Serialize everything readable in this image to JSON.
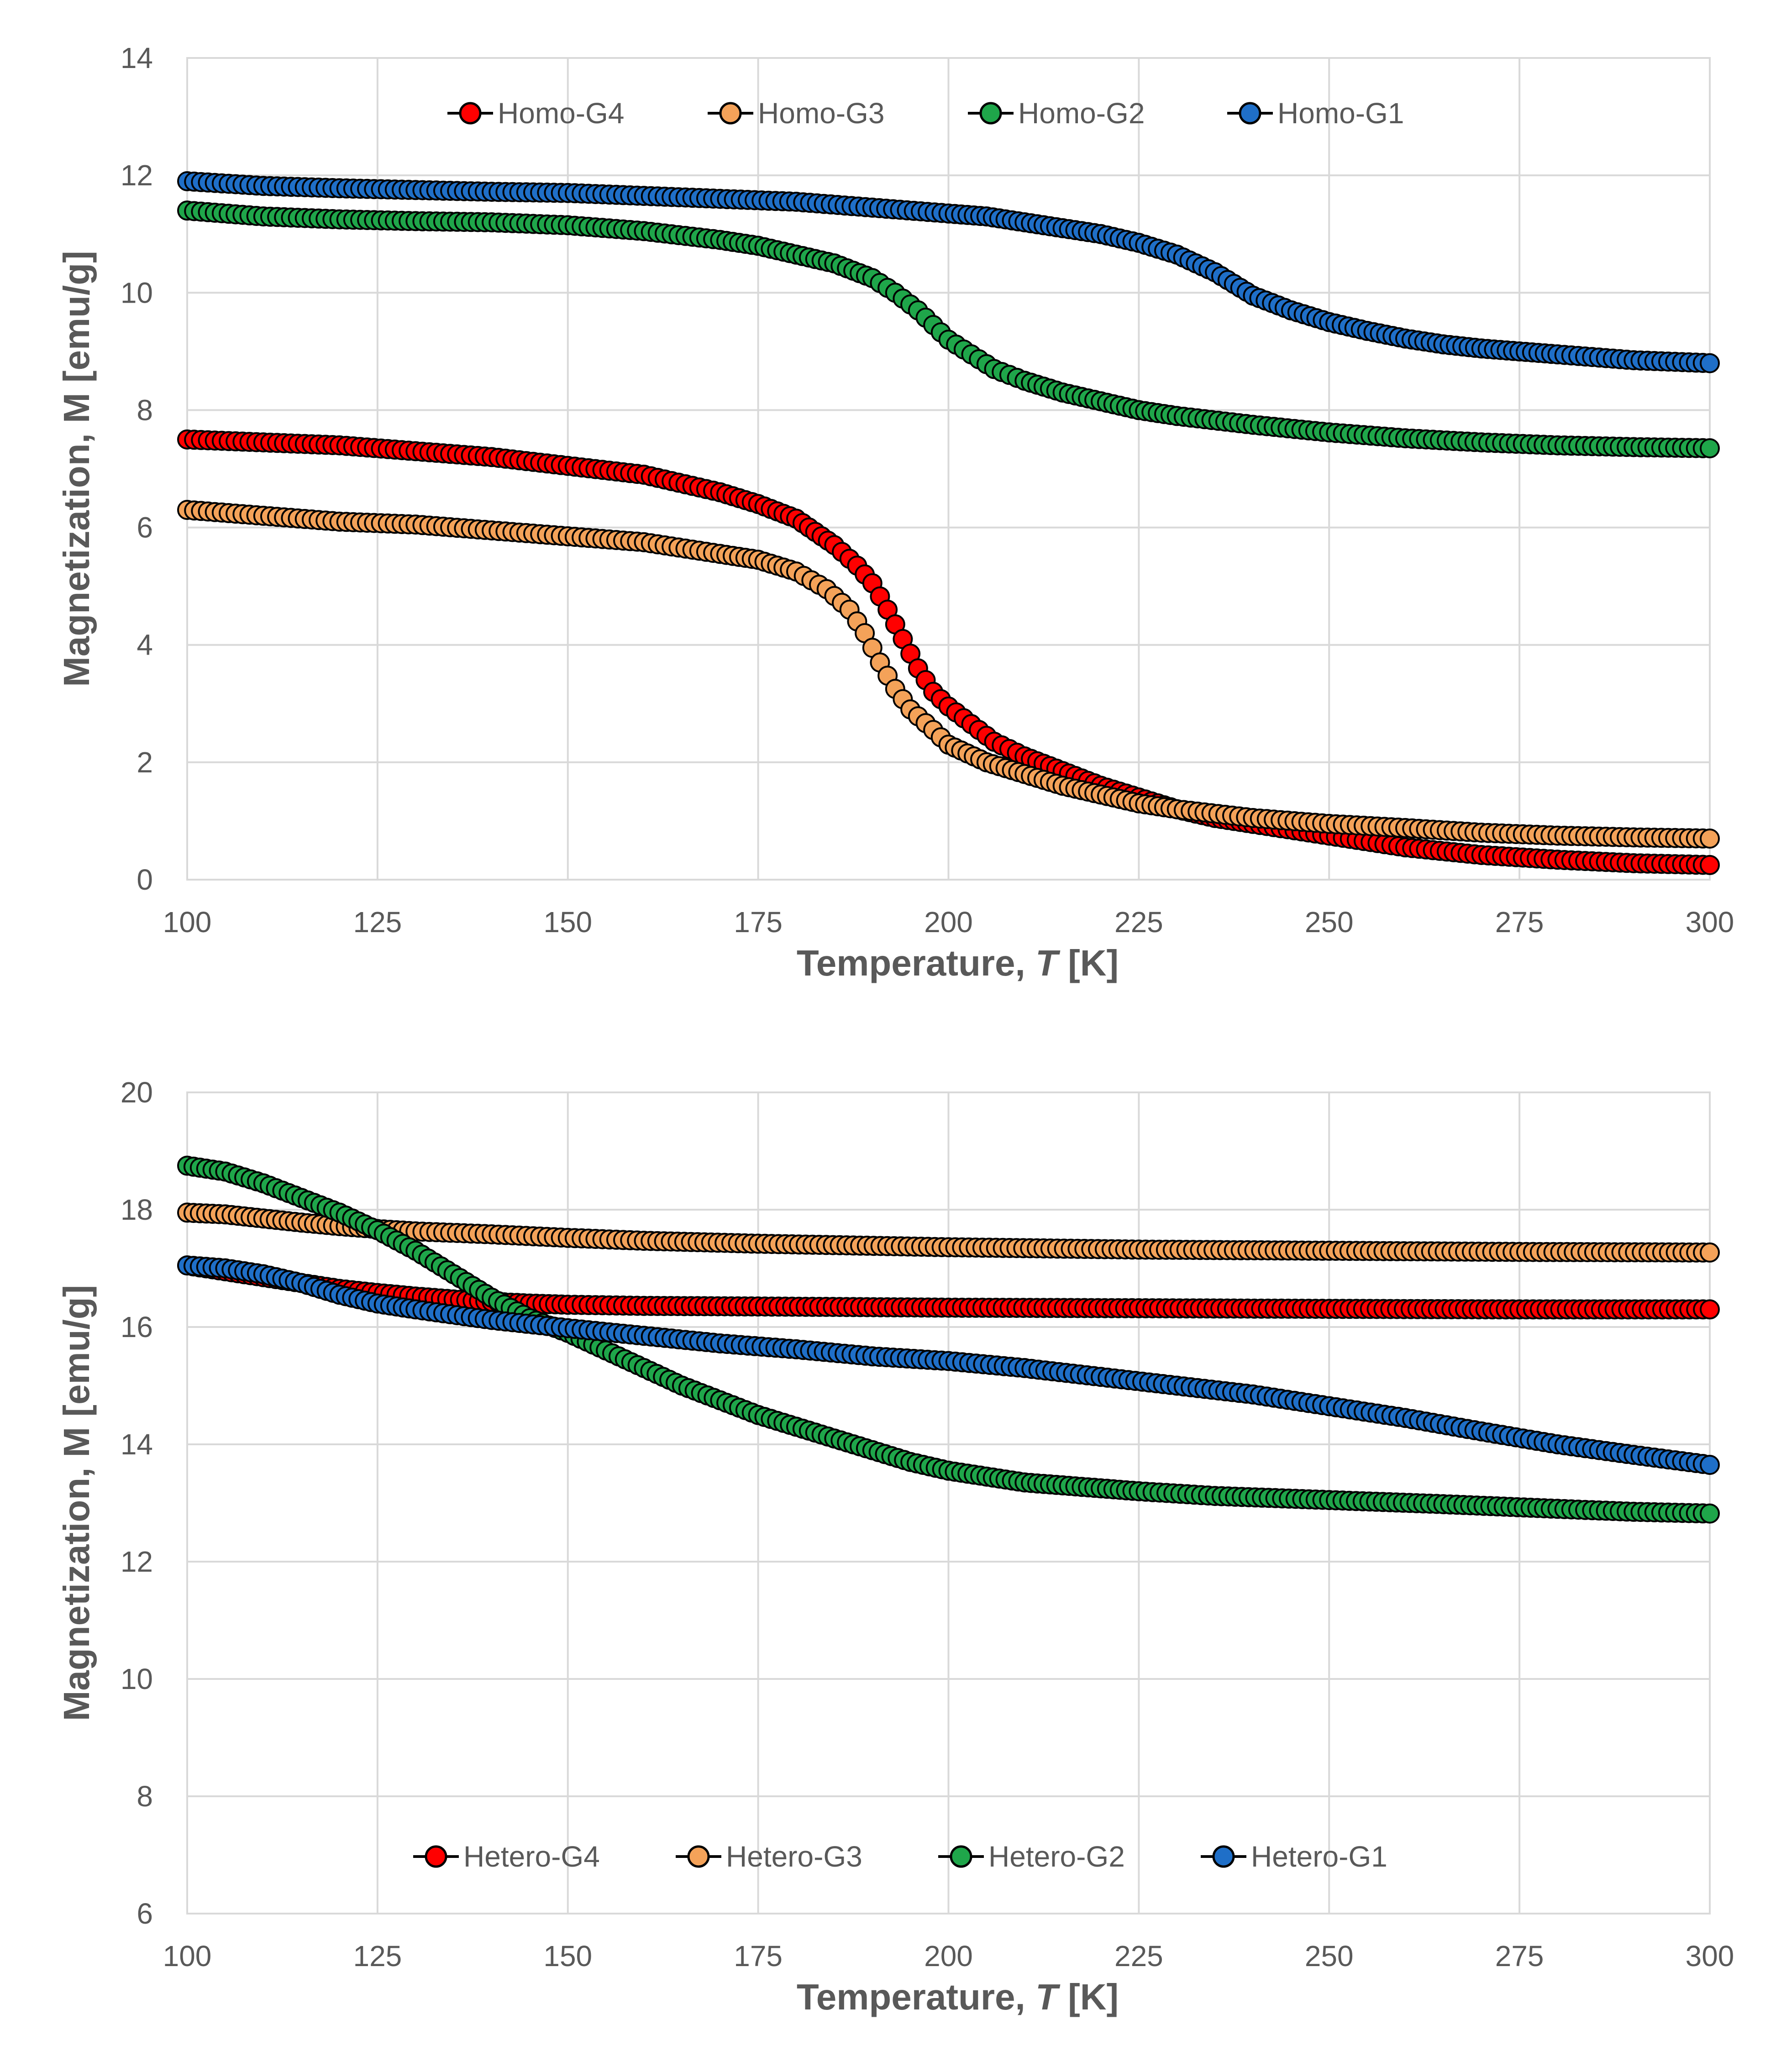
{
  "chart_data": [
    {
      "type": "scatter",
      "xlabel_main": "Temperature, ",
      "xlabel_var": "T",
      "xlabel_unit": " [K]",
      "ylabel": "Magnetization, M [emu/g]",
      "xlim": [
        100,
        300
      ],
      "ylim": [
        0,
        14
      ],
      "xticks": [
        "100",
        "125",
        "150",
        "175",
        "200",
        "225",
        "250",
        "275",
        "300"
      ],
      "yticks": [
        "0",
        "2",
        "4",
        "6",
        "8",
        "10",
        "12",
        "14"
      ],
      "legend_position": "top",
      "grid": true,
      "series": [
        {
          "name": "Homo-G4",
          "color": "#ff0000",
          "points": [
            [
              100,
              7.5
            ],
            [
              110,
              7.45
            ],
            [
              120,
              7.4
            ],
            [
              130,
              7.3
            ],
            [
              140,
              7.2
            ],
            [
              150,
              7.05
            ],
            [
              160,
              6.9
            ],
            [
              170,
              6.6
            ],
            [
              175,
              6.4
            ],
            [
              180,
              6.15
            ],
            [
              185,
              5.7
            ],
            [
              188,
              5.35
            ],
            [
              190,
              5.05
            ],
            [
              192,
              4.6
            ],
            [
              194,
              4.1
            ],
            [
              196,
              3.6
            ],
            [
              198,
              3.2
            ],
            [
              200,
              2.95
            ],
            [
              203,
              2.65
            ],
            [
              206,
              2.35
            ],
            [
              210,
              2.1
            ],
            [
              215,
              1.85
            ],
            [
              220,
              1.6
            ],
            [
              225,
              1.4
            ],
            [
              230,
              1.2
            ],
            [
              235,
              1.05
            ],
            [
              240,
              0.95
            ],
            [
              250,
              0.75
            ],
            [
              260,
              0.55
            ],
            [
              270,
              0.42
            ],
            [
              280,
              0.34
            ],
            [
              290,
              0.28
            ],
            [
              300,
              0.25
            ]
          ]
        },
        {
          "name": "Homo-G3",
          "color": "#f4a259",
          "points": [
            [
              100,
              6.3
            ],
            [
              110,
              6.2
            ],
            [
              120,
              6.1
            ],
            [
              130,
              6.05
            ],
            [
              140,
              5.95
            ],
            [
              150,
              5.85
            ],
            [
              160,
              5.75
            ],
            [
              170,
              5.55
            ],
            [
              175,
              5.45
            ],
            [
              180,
              5.25
            ],
            [
              184,
              4.95
            ],
            [
              187,
              4.6
            ],
            [
              189,
              4.2
            ],
            [
              191,
              3.7
            ],
            [
              193,
              3.25
            ],
            [
              195,
              2.9
            ],
            [
              198,
              2.55
            ],
            [
              200,
              2.3
            ],
            [
              205,
              2.0
            ],
            [
              210,
              1.8
            ],
            [
              215,
              1.6
            ],
            [
              220,
              1.45
            ],
            [
              225,
              1.3
            ],
            [
              230,
              1.2
            ],
            [
              240,
              1.05
            ],
            [
              250,
              0.95
            ],
            [
              260,
              0.88
            ],
            [
              270,
              0.8
            ],
            [
              280,
              0.75
            ],
            [
              290,
              0.72
            ],
            [
              300,
              0.7
            ]
          ]
        },
        {
          "name": "Homo-G2",
          "color": "#1fa64a",
          "points": [
            [
              100,
              11.4
            ],
            [
              110,
              11.3
            ],
            [
              120,
              11.25
            ],
            [
              130,
              11.22
            ],
            [
              140,
              11.2
            ],
            [
              150,
              11.15
            ],
            [
              160,
              11.05
            ],
            [
              170,
              10.9
            ],
            [
              175,
              10.8
            ],
            [
              180,
              10.65
            ],
            [
              185,
              10.5
            ],
            [
              190,
              10.25
            ],
            [
              193,
              10.0
            ],
            [
              196,
              9.7
            ],
            [
              198,
              9.45
            ],
            [
              200,
              9.2
            ],
            [
              203,
              8.95
            ],
            [
              206,
              8.7
            ],
            [
              210,
              8.5
            ],
            [
              215,
              8.3
            ],
            [
              220,
              8.15
            ],
            [
              225,
              8.0
            ],
            [
              230,
              7.9
            ],
            [
              240,
              7.75
            ],
            [
              250,
              7.62
            ],
            [
              260,
              7.52
            ],
            [
              270,
              7.45
            ],
            [
              280,
              7.4
            ],
            [
              290,
              7.37
            ],
            [
              300,
              7.35
            ]
          ]
        },
        {
          "name": "Homo-G1",
          "color": "#1f6fc8",
          "points": [
            [
              100,
              11.9
            ],
            [
              110,
              11.82
            ],
            [
              120,
              11.78
            ],
            [
              130,
              11.75
            ],
            [
              140,
              11.72
            ],
            [
              150,
              11.7
            ],
            [
              160,
              11.65
            ],
            [
              170,
              11.6
            ],
            [
              180,
              11.55
            ],
            [
              190,
              11.45
            ],
            [
              200,
              11.35
            ],
            [
              205,
              11.3
            ],
            [
              210,
              11.2
            ],
            [
              215,
              11.1
            ],
            [
              220,
              11.0
            ],
            [
              225,
              10.85
            ],
            [
              230,
              10.65
            ],
            [
              235,
              10.35
            ],
            [
              240,
              9.95
            ],
            [
              245,
              9.7
            ],
            [
              250,
              9.5
            ],
            [
              255,
              9.35
            ],
            [
              260,
              9.22
            ],
            [
              265,
              9.12
            ],
            [
              270,
              9.05
            ],
            [
              275,
              9.0
            ],
            [
              280,
              8.95
            ],
            [
              290,
              8.85
            ],
            [
              300,
              8.8
            ]
          ]
        }
      ]
    },
    {
      "type": "scatter",
      "xlabel_main": "Temperature, ",
      "xlabel_var": "T",
      "xlabel_unit": " [K]",
      "ylabel": "Magnetization, M [emu/g]",
      "xlim": [
        100,
        300
      ],
      "ylim": [
        6,
        20
      ],
      "xticks": [
        "100",
        "125",
        "150",
        "175",
        "200",
        "225",
        "250",
        "275",
        "300"
      ],
      "yticks": [
        "6",
        "8",
        "10",
        "12",
        "14",
        "16",
        "18",
        "20"
      ],
      "legend_position": "bottom",
      "grid": true,
      "series": [
        {
          "name": "Hetero-G4",
          "color": "#ff0000",
          "points": [
            [
              100,
              17.05
            ],
            [
              105,
              16.95
            ],
            [
              110,
              16.85
            ],
            [
              115,
              16.75
            ],
            [
              120,
              16.65
            ],
            [
              125,
              16.58
            ],
            [
              130,
              16.52
            ],
            [
              135,
              16.47
            ],
            [
              140,
              16.43
            ],
            [
              145,
              16.4
            ],
            [
              150,
              16.38
            ],
            [
              160,
              16.36
            ],
            [
              175,
              16.35
            ],
            [
              200,
              16.33
            ],
            [
              225,
              16.32
            ],
            [
              250,
              16.31
            ],
            [
              275,
              16.3
            ],
            [
              300,
              16.3
            ]
          ]
        },
        {
          "name": "Hetero-G3",
          "color": "#f4a259",
          "points": [
            [
              100,
              17.95
            ],
            [
              105,
              17.92
            ],
            [
              110,
              17.85
            ],
            [
              115,
              17.78
            ],
            [
              120,
              17.72
            ],
            [
              125,
              17.67
            ],
            [
              130,
              17.63
            ],
            [
              140,
              17.58
            ],
            [
              150,
              17.52
            ],
            [
              160,
              17.47
            ],
            [
              175,
              17.42
            ],
            [
              200,
              17.36
            ],
            [
              225,
              17.32
            ],
            [
              250,
              17.3
            ],
            [
              275,
              17.28
            ],
            [
              300,
              17.27
            ]
          ]
        },
        {
          "name": "Hetero-G2",
          "color": "#1fa64a",
          "points": [
            [
              100,
              18.75
            ],
            [
              105,
              18.65
            ],
            [
              110,
              18.45
            ],
            [
              115,
              18.2
            ],
            [
              120,
              17.95
            ],
            [
              125,
              17.65
            ],
            [
              130,
              17.3
            ],
            [
              135,
              16.9
            ],
            [
              140,
              16.5
            ],
            [
              145,
              16.15
            ],
            [
              150,
              15.9
            ],
            [
              155,
              15.6
            ],
            [
              160,
              15.3
            ],
            [
              165,
              15.0
            ],
            [
              170,
              14.75
            ],
            [
              175,
              14.5
            ],
            [
              180,
              14.3
            ],
            [
              185,
              14.1
            ],
            [
              190,
              13.9
            ],
            [
              195,
              13.7
            ],
            [
              200,
              13.55
            ],
            [
              205,
              13.45
            ],
            [
              210,
              13.35
            ],
            [
              215,
              13.3
            ],
            [
              220,
              13.25
            ],
            [
              225,
              13.2
            ],
            [
              235,
              13.12
            ],
            [
              250,
              13.05
            ],
            [
              265,
              12.98
            ],
            [
              280,
              12.9
            ],
            [
              290,
              12.85
            ],
            [
              300,
              12.82
            ]
          ]
        },
        {
          "name": "Hetero-G1",
          "color": "#1f6fc8",
          "points": [
            [
              100,
              17.05
            ],
            [
              105,
              17.0
            ],
            [
              110,
              16.9
            ],
            [
              115,
              16.75
            ],
            [
              120,
              16.55
            ],
            [
              125,
              16.4
            ],
            [
              130,
              16.3
            ],
            [
              140,
              16.12
            ],
            [
              150,
              15.98
            ],
            [
              160,
              15.85
            ],
            [
              170,
              15.72
            ],
            [
              180,
              15.62
            ],
            [
              190,
              15.5
            ],
            [
              200,
              15.42
            ],
            [
              210,
              15.3
            ],
            [
              220,
              15.15
            ],
            [
              230,
              15.0
            ],
            [
              240,
              14.85
            ],
            [
              250,
              14.65
            ],
            [
              260,
              14.45
            ],
            [
              270,
              14.22
            ],
            [
              280,
              14.0
            ],
            [
              290,
              13.82
            ],
            [
              300,
              13.65
            ]
          ]
        }
      ]
    }
  ]
}
